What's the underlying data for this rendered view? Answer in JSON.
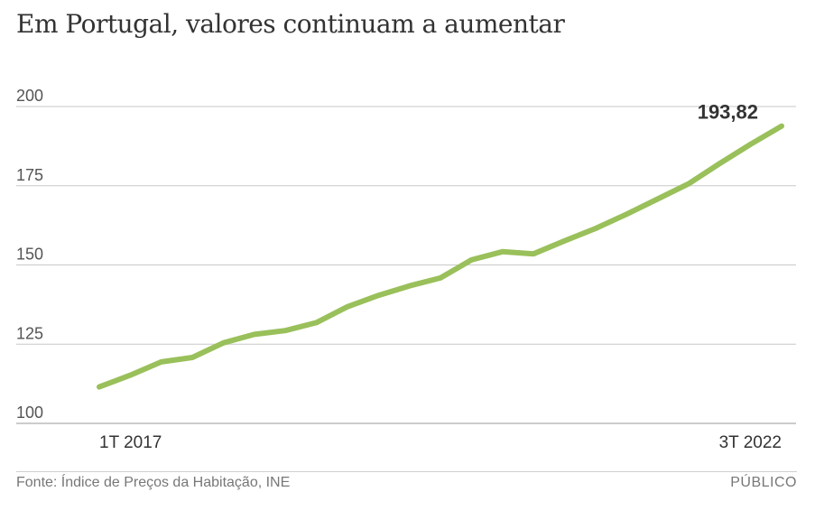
{
  "title": "Em Portugal, valores continuam a aumentar",
  "source": "Fonte: Índice de Preços da Habitação, INE",
  "brand": "PÚBLICO",
  "colors": {
    "line": "#99c05a",
    "grid": "#c9c9c9",
    "text": "#333333"
  },
  "chart_data": {
    "type": "line",
    "title": "Em Portugal, valores continuam a aumentar",
    "xlabel": "",
    "ylabel": "",
    "ylim": [
      100,
      200
    ],
    "yticks": [
      "200",
      "175",
      "150",
      "125",
      "100"
    ],
    "ytick_values": [
      200,
      175,
      150,
      125,
      100
    ],
    "x_start_label": "1T 2017",
    "x_end_label": "3T 2022",
    "end_value_label": "193,82",
    "series": [
      {
        "name": "Índice de Preços da Habitação",
        "values": [
          111.5,
          115.2,
          119.4,
          120.8,
          125.4,
          128.1,
          129.3,
          131.8,
          136.8,
          140.4,
          143.4,
          145.9,
          151.6,
          154.2,
          153.5,
          157.6,
          161.5,
          166.0,
          170.8,
          175.6,
          182.0,
          188.1,
          193.82
        ]
      }
    ]
  }
}
